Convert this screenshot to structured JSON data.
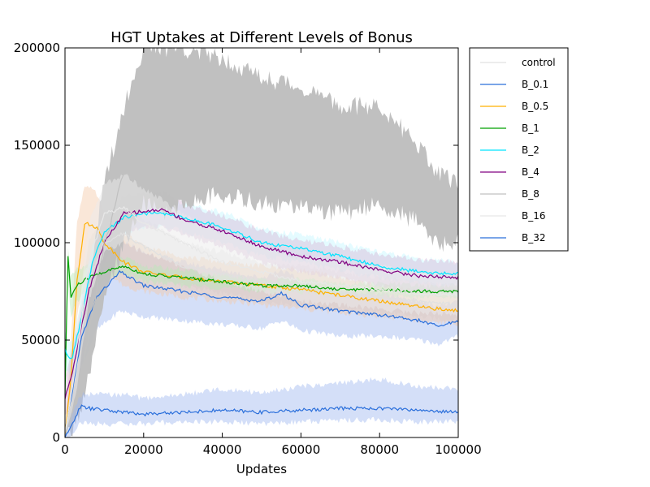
{
  "chart_data": {
    "type": "line",
    "title": "HGT Uptakes at Different Levels of Bonus",
    "xlabel": "Updates",
    "ylabel": "",
    "xlim": [
      0,
      100000
    ],
    "ylim": [
      0,
      200000
    ],
    "x_ticks": [
      0,
      20000,
      40000,
      60000,
      80000,
      100000
    ],
    "y_ticks": [
      0,
      50000,
      100000,
      150000,
      200000
    ],
    "x_tick_labels": [
      "0",
      "20000",
      "40000",
      "60000",
      "80000",
      "100000"
    ],
    "y_tick_labels": [
      "0",
      "50000",
      "100000",
      "150000",
      "200000"
    ],
    "grid": false,
    "legend_position": "outside-right",
    "series": [
      {
        "name": "control",
        "color": "#e0e0e0",
        "band_color": "#e8e8e8",
        "x": [
          0,
          3000,
          6000,
          10000,
          15000,
          20000,
          30000,
          40000,
          50000,
          60000,
          70000,
          80000,
          90000,
          100000
        ],
        "y": [
          2000,
          35000,
          80000,
          100000,
          105000,
          98000,
          88000,
          84000,
          80000,
          78000,
          75000,
          72000,
          70000,
          68000
        ],
        "lower": [
          0,
          20000,
          60000,
          85000,
          90000,
          85000,
          78000,
          74000,
          70000,
          68000,
          66000,
          64000,
          62000,
          60000
        ],
        "upper": [
          5000,
          50000,
          100000,
          115000,
          120000,
          112000,
          100000,
          95000,
          90000,
          88000,
          85000,
          82000,
          80000,
          78000
        ]
      },
      {
        "name": "B_0.1",
        "color": "#2a6fdb",
        "band_color": "#9fb8ef",
        "x": [
          0,
          2000,
          4000,
          8000,
          14000,
          20000,
          30000,
          40000,
          50000,
          55000,
          60000,
          70000,
          80000,
          90000,
          95000,
          100000
        ],
        "y": [
          3000,
          25000,
          50000,
          72000,
          85000,
          78000,
          75000,
          72000,
          70000,
          74000,
          68000,
          65000,
          63000,
          60000,
          57000,
          60000
        ],
        "lower": [
          0,
          15000,
          35000,
          55000,
          65000,
          62000,
          60000,
          58000,
          56000,
          60000,
          55000,
          52000,
          52000,
          50000,
          48000,
          52000
        ],
        "upper": [
          6000,
          35000,
          60000,
          88000,
          102000,
          95000,
          90000,
          86000,
          82000,
          86000,
          80000,
          75000,
          74000,
          70000,
          67000,
          70000
        ]
      },
      {
        "name": "B_0.5",
        "color": "#ffb000",
        "band_color": "#f4c9a8",
        "x": [
          0,
          1500,
          3000,
          5000,
          8000,
          10000,
          15000,
          20000,
          30000,
          40000,
          50000,
          60000,
          70000,
          80000,
          90000,
          100000
        ],
        "y": [
          1000,
          30000,
          80000,
          110000,
          108000,
          100000,
          90000,
          85000,
          82000,
          80000,
          78000,
          76000,
          73000,
          70000,
          67000,
          65000
        ],
        "lower": [
          0,
          10000,
          60000,
          85000,
          92000,
          85000,
          78000,
          75000,
          72000,
          70000,
          68000,
          66000,
          64000,
          62000,
          60000,
          58000
        ],
        "upper": [
          3000,
          50000,
          110000,
          130000,
          125000,
          115000,
          105000,
          98000,
          93000,
          90000,
          88000,
          86000,
          82000,
          78000,
          75000,
          73000
        ]
      },
      {
        "name": "B_1",
        "color": "#00a000",
        "band_color": "#b8e8b8",
        "x": [
          0,
          700,
          1500,
          3000,
          6000,
          10000,
          15000,
          20000,
          30000,
          40000,
          50000,
          60000,
          70000,
          80000,
          90000,
          100000
        ],
        "y": [
          20000,
          95000,
          72000,
          78000,
          82000,
          85000,
          88000,
          84000,
          82000,
          80000,
          78000,
          78000,
          76000,
          76000,
          75000,
          75000
        ],
        "lower": [
          10000,
          80000,
          62000,
          70000,
          76000,
          80000,
          84000,
          80000,
          78000,
          77000,
          75000,
          75000,
          73000,
          73000,
          72000,
          72000
        ],
        "upper": [
          30000,
          100000,
          82000,
          86000,
          88000,
          90000,
          92000,
          88000,
          86000,
          83000,
          81000,
          81000,
          79000,
          79000,
          78000,
          78000
        ]
      },
      {
        "name": "B_2",
        "color": "#00e5ff",
        "band_color": "#c4f6ff",
        "x": [
          0,
          1000,
          2000,
          4000,
          7000,
          10000,
          15000,
          20000,
          25000,
          30000,
          40000,
          50000,
          60000,
          70000,
          80000,
          90000,
          100000
        ],
        "y": [
          45000,
          40000,
          42000,
          60000,
          90000,
          105000,
          113000,
          115000,
          115000,
          113000,
          108000,
          100000,
          97000,
          93000,
          88000,
          85000,
          84000
        ],
        "lower": [
          35000,
          32000,
          34000,
          50000,
          80000,
          95000,
          105000,
          108000,
          108000,
          106000,
          100000,
          93000,
          90000,
          86000,
          82000,
          79000,
          78000
        ],
        "upper": [
          55000,
          48000,
          50000,
          70000,
          100000,
          115000,
          121000,
          122000,
          122000,
          120000,
          116000,
          107000,
          104000,
          100000,
          95000,
          92000,
          90000
        ]
      },
      {
        "name": "B_4",
        "color": "#800080",
        "band_color": "#d8b8d8",
        "x": [
          0,
          2000,
          4000,
          6000,
          10000,
          15000,
          20000,
          25000,
          30000,
          40000,
          50000,
          60000,
          70000,
          80000,
          90000,
          100000
        ],
        "y": [
          20000,
          35000,
          55000,
          75000,
          100000,
          115000,
          116000,
          117000,
          112000,
          106000,
          98000,
          93000,
          90000,
          86000,
          83000,
          82000
        ],
        "lower": [
          10000,
          25000,
          45000,
          65000,
          90000,
          106000,
          108000,
          108000,
          104000,
          98000,
          90000,
          85000,
          82000,
          78000,
          75000,
          74000
        ],
        "upper": [
          30000,
          45000,
          65000,
          85000,
          110000,
          124000,
          125000,
          126000,
          120000,
          114000,
          106000,
          101000,
          98000,
          94000,
          91000,
          90000
        ]
      },
      {
        "name": "B_8",
        "color": "#c0c0c0",
        "band_color": "#bdbdbd",
        "x": [
          0,
          2000,
          5000,
          10000,
          15000,
          20000,
          25000,
          30000,
          40000,
          50000,
          60000,
          70000,
          80000,
          90000,
          95000,
          100000
        ],
        "y": [
          0,
          15000,
          40000,
          100000,
          135000,
          145000,
          150000,
          160000,
          155000,
          145000,
          140000,
          137000,
          140000,
          125000,
          115000,
          115000
        ],
        "lower": [
          0,
          5000,
          20000,
          70000,
          100000,
          120000,
          115000,
          120000,
          125000,
          120000,
          118000,
          115000,
          120000,
          110000,
          100000,
          100000
        ],
        "upper": [
          5000,
          30000,
          70000,
          130000,
          170000,
          200000,
          200000,
          200000,
          195000,
          185000,
          180000,
          170000,
          170000,
          150000,
          135000,
          130000
        ]
      },
      {
        "name": "B_16",
        "color": "#e8e8e8",
        "band_color": "#ececec",
        "x": [
          0,
          3000,
          6000,
          10000,
          15000,
          20000,
          30000,
          40000,
          50000,
          60000,
          70000,
          80000,
          90000,
          100000
        ],
        "y": [
          2000,
          40000,
          90000,
          115000,
          118000,
          110000,
          100000,
          90000,
          85000,
          80000,
          78000,
          76000,
          74000,
          73000
        ],
        "lower": [
          0,
          25000,
          70000,
          95000,
          100000,
          95000,
          88000,
          80000,
          75000,
          70000,
          68000,
          66000,
          64000,
          63000
        ],
        "upper": [
          5000,
          55000,
          110000,
          130000,
          135000,
          128000,
          115000,
          105000,
          98000,
          92000,
          90000,
          88000,
          85000,
          84000
        ]
      },
      {
        "name": "B_32",
        "color": "#2a6fdb",
        "band_color": "#9fb8ef",
        "x": [
          0,
          1000,
          2000,
          3000,
          4000,
          6000,
          10000,
          15000,
          20000,
          30000,
          40000,
          50000,
          60000,
          70000,
          80000,
          90000,
          100000
        ],
        "y": [
          0,
          3000,
          8000,
          12000,
          16000,
          15000,
          14000,
          13000,
          12000,
          13000,
          14000,
          13000,
          14000,
          15000,
          15000,
          14000,
          13000
        ],
        "lower": [
          0,
          0,
          3000,
          5000,
          8000,
          7000,
          7000,
          7000,
          7000,
          8000,
          8000,
          7000,
          8000,
          9000,
          9000,
          8000,
          8000
        ],
        "upper": [
          2000,
          8000,
          14000,
          18000,
          22000,
          22000,
          22000,
          22000,
          20000,
          22000,
          25000,
          23000,
          26000,
          28000,
          30000,
          26000,
          25000
        ]
      }
    ]
  }
}
